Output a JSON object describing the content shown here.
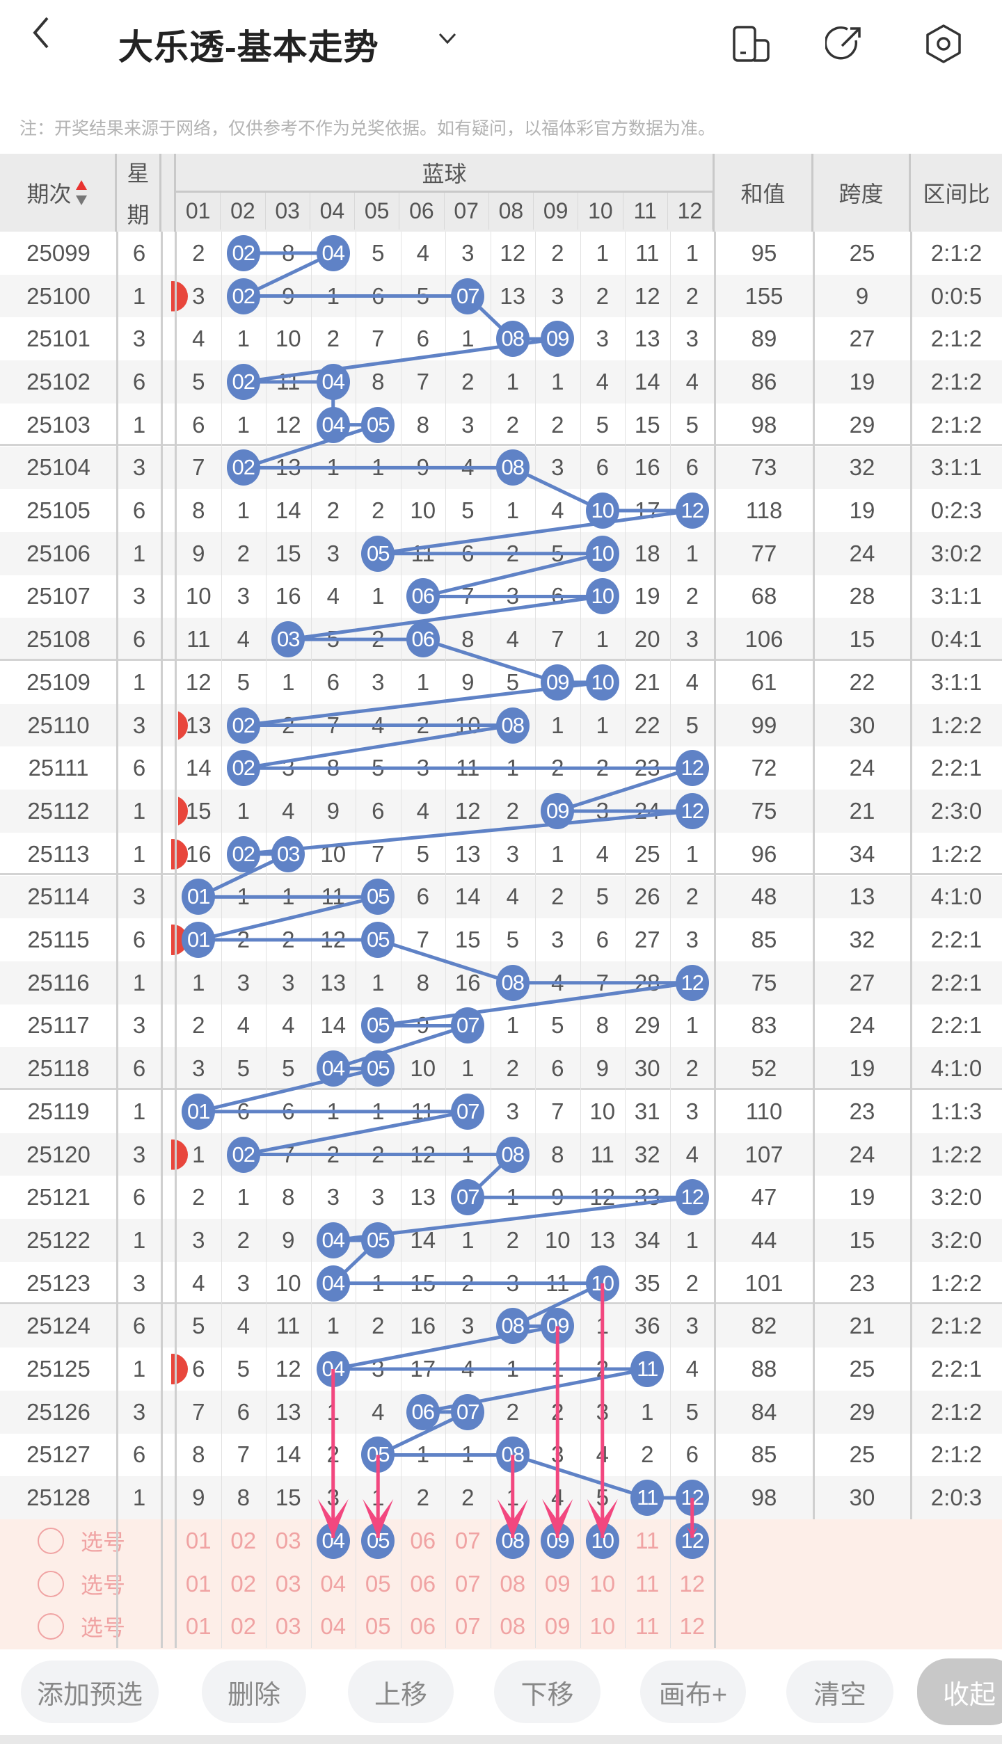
{
  "header": {
    "title": "大乐透-基本走势",
    "icons": [
      "back-icon",
      "chevron-down-icon",
      "screen-icon",
      "share-icon",
      "settings-icon"
    ],
    "note": "注：开奖结果来源于网络，仅供参考不作为兑奖依据。如有疑问，以福体彩官方数据为准。"
  },
  "table": {
    "col_issue": "期次",
    "col_weekday_1": "星",
    "col_weekday_2": "期",
    "group_blue": "蓝球",
    "balls": [
      "01",
      "02",
      "03",
      "04",
      "05",
      "06",
      "07",
      "08",
      "09",
      "10",
      "11",
      "12"
    ],
    "col_sum": "和值",
    "col_span": "跨度",
    "col_ratio": "区间比",
    "rows": [
      {
        "issue": "25099",
        "weekday": "6",
        "cells": [
          "2",
          "02",
          "8",
          "04",
          "5",
          "4",
          "3",
          "12",
          "2",
          "1",
          "11",
          "1"
        ],
        "hits": [
          "02",
          "04"
        ],
        "sum": "95",
        "span": "25",
        "ratio": "2:1:2"
      },
      {
        "issue": "25100",
        "weekday": "1",
        "cells": [
          "3",
          "02",
          "9",
          "1",
          "6",
          "5",
          "07",
          "13",
          "3",
          "2",
          "12",
          "2"
        ],
        "hits": [
          "02",
          "07"
        ],
        "sum": "155",
        "span": "9",
        "ratio": "0:0:5"
      },
      {
        "issue": "25101",
        "weekday": "3",
        "cells": [
          "4",
          "1",
          "10",
          "2",
          "7",
          "6",
          "1",
          "08",
          "09",
          "3",
          "13",
          "3"
        ],
        "hits": [
          "08",
          "09"
        ],
        "sum": "89",
        "span": "27",
        "ratio": "2:1:2"
      },
      {
        "issue": "25102",
        "weekday": "6",
        "cells": [
          "5",
          "02",
          "11",
          "04",
          "8",
          "7",
          "2",
          "1",
          "1",
          "4",
          "14",
          "4"
        ],
        "hits": [
          "02",
          "04"
        ],
        "sum": "86",
        "span": "19",
        "ratio": "2:1:2"
      },
      {
        "issue": "25103",
        "weekday": "1",
        "cells": [
          "6",
          "1",
          "12",
          "04",
          "05",
          "8",
          "3",
          "2",
          "2",
          "5",
          "15",
          "5"
        ],
        "hits": [
          "04",
          "05"
        ],
        "sum": "98",
        "span": "29",
        "ratio": "2:1:2"
      },
      {
        "issue": "25104",
        "weekday": "3",
        "cells": [
          "7",
          "02",
          "13",
          "1",
          "1",
          "9",
          "4",
          "08",
          "3",
          "6",
          "16",
          "6"
        ],
        "hits": [
          "02",
          "08"
        ],
        "sum": "73",
        "span": "32",
        "ratio": "3:1:1"
      },
      {
        "issue": "25105",
        "weekday": "6",
        "cells": [
          "8",
          "1",
          "14",
          "2",
          "2",
          "10",
          "5",
          "1",
          "4",
          "10",
          "17",
          "12"
        ],
        "hits": [
          "10",
          "12"
        ],
        "sum": "118",
        "span": "19",
        "ratio": "0:2:3"
      },
      {
        "issue": "25106",
        "weekday": "1",
        "cells": [
          "9",
          "2",
          "15",
          "3",
          "05",
          "11",
          "6",
          "2",
          "5",
          "10",
          "18",
          "1"
        ],
        "hits": [
          "05",
          "10"
        ],
        "sum": "77",
        "span": "24",
        "ratio": "3:0:2"
      },
      {
        "issue": "25107",
        "weekday": "3",
        "cells": [
          "10",
          "3",
          "16",
          "4",
          "1",
          "06",
          "7",
          "3",
          "6",
          "10",
          "19",
          "2"
        ],
        "hits": [
          "06",
          "10"
        ],
        "sum": "68",
        "span": "28",
        "ratio": "3:1:1"
      },
      {
        "issue": "25108",
        "weekday": "6",
        "cells": [
          "11",
          "4",
          "03",
          "5",
          "2",
          "06",
          "8",
          "4",
          "7",
          "1",
          "20",
          "3"
        ],
        "hits": [
          "03",
          "06"
        ],
        "sum": "106",
        "span": "15",
        "ratio": "0:4:1"
      },
      {
        "issue": "25109",
        "weekday": "1",
        "cells": [
          "12",
          "5",
          "1",
          "6",
          "3",
          "1",
          "9",
          "5",
          "09",
          "10",
          "21",
          "4"
        ],
        "hits": [
          "09",
          "10"
        ],
        "sum": "61",
        "span": "22",
        "ratio": "3:1:1"
      },
      {
        "issue": "25110",
        "weekday": "3",
        "cells": [
          "13",
          "02",
          "2",
          "7",
          "4",
          "2",
          "10",
          "08",
          "1",
          "1",
          "22",
          "5"
        ],
        "hits": [
          "02",
          "08"
        ],
        "sum": "99",
        "span": "30",
        "ratio": "1:2:2"
      },
      {
        "issue": "25111",
        "weekday": "6",
        "cells": [
          "14",
          "02",
          "3",
          "8",
          "5",
          "3",
          "11",
          "1",
          "2",
          "2",
          "23",
          "12"
        ],
        "hits": [
          "02",
          "12"
        ],
        "sum": "72",
        "span": "24",
        "ratio": "2:2:1"
      },
      {
        "issue": "25112",
        "weekday": "1",
        "cells": [
          "15",
          "1",
          "4",
          "9",
          "6",
          "4",
          "12",
          "2",
          "09",
          "3",
          "24",
          "12"
        ],
        "hits": [
          "09",
          "12"
        ],
        "sum": "75",
        "span": "21",
        "ratio": "2:3:0"
      },
      {
        "issue": "25113",
        "weekday": "1",
        "cells": [
          "16",
          "02",
          "03",
          "10",
          "7",
          "5",
          "13",
          "3",
          "1",
          "4",
          "25",
          "1"
        ],
        "hits": [
          "02",
          "03"
        ],
        "sum": "96",
        "span": "34",
        "ratio": "1:2:2"
      },
      {
        "issue": "25114",
        "weekday": "3",
        "cells": [
          "01",
          "1",
          "1",
          "11",
          "05",
          "6",
          "14",
          "4",
          "2",
          "5",
          "26",
          "2"
        ],
        "hits": [
          "01",
          "05"
        ],
        "sum": "48",
        "span": "13",
        "ratio": "4:1:0"
      },
      {
        "issue": "25115",
        "weekday": "6",
        "cells": [
          "01",
          "2",
          "2",
          "12",
          "05",
          "7",
          "15",
          "5",
          "3",
          "6",
          "27",
          "3"
        ],
        "hits": [
          "01",
          "05"
        ],
        "sum": "85",
        "span": "32",
        "ratio": "2:2:1"
      },
      {
        "issue": "25116",
        "weekday": "1",
        "cells": [
          "1",
          "3",
          "3",
          "13",
          "1",
          "8",
          "16",
          "08",
          "4",
          "7",
          "28",
          "12"
        ],
        "hits": [
          "08",
          "12"
        ],
        "sum": "75",
        "span": "27",
        "ratio": "2:2:1"
      },
      {
        "issue": "25117",
        "weekday": "3",
        "cells": [
          "2",
          "4",
          "4",
          "14",
          "05",
          "9",
          "07",
          "1",
          "5",
          "8",
          "29",
          "1"
        ],
        "hits": [
          "05",
          "07"
        ],
        "sum": "83",
        "span": "24",
        "ratio": "2:2:1"
      },
      {
        "issue": "25118",
        "weekday": "6",
        "cells": [
          "3",
          "5",
          "5",
          "04",
          "05",
          "10",
          "1",
          "2",
          "6",
          "9",
          "30",
          "2"
        ],
        "hits": [
          "04",
          "05"
        ],
        "sum": "52",
        "span": "19",
        "ratio": "4:1:0"
      },
      {
        "issue": "25119",
        "weekday": "1",
        "cells": [
          "01",
          "6",
          "6",
          "1",
          "1",
          "11",
          "07",
          "3",
          "7",
          "10",
          "31",
          "3"
        ],
        "hits": [
          "01",
          "07"
        ],
        "sum": "110",
        "span": "23",
        "ratio": "1:1:3"
      },
      {
        "issue": "25120",
        "weekday": "3",
        "cells": [
          "1",
          "02",
          "7",
          "2",
          "2",
          "12",
          "1",
          "08",
          "8",
          "11",
          "32",
          "4"
        ],
        "hits": [
          "02",
          "08"
        ],
        "sum": "107",
        "span": "24",
        "ratio": "1:2:2"
      },
      {
        "issue": "25121",
        "weekday": "6",
        "cells": [
          "2",
          "1",
          "8",
          "3",
          "3",
          "13",
          "07",
          "1",
          "9",
          "12",
          "33",
          "12"
        ],
        "hits": [
          "07",
          "12"
        ],
        "sum": "47",
        "span": "19",
        "ratio": "3:2:0"
      },
      {
        "issue": "25122",
        "weekday": "1",
        "cells": [
          "3",
          "2",
          "9",
          "04",
          "05",
          "14",
          "1",
          "2",
          "10",
          "13",
          "34",
          "1"
        ],
        "hits": [
          "04",
          "05"
        ],
        "sum": "44",
        "span": "15",
        "ratio": "3:2:0"
      },
      {
        "issue": "25123",
        "weekday": "3",
        "cells": [
          "4",
          "3",
          "10",
          "04",
          "1",
          "15",
          "2",
          "3",
          "11",
          "10",
          "35",
          "2"
        ],
        "hits": [
          "04",
          "10"
        ],
        "sum": "101",
        "span": "23",
        "ratio": "1:2:2"
      },
      {
        "issue": "25124",
        "weekday": "6",
        "cells": [
          "5",
          "4",
          "11",
          "1",
          "2",
          "16",
          "3",
          "08",
          "09",
          "1",
          "36",
          "3"
        ],
        "hits": [
          "08",
          "09"
        ],
        "sum": "82",
        "span": "21",
        "ratio": "2:1:2"
      },
      {
        "issue": "25125",
        "weekday": "1",
        "cells": [
          "6",
          "5",
          "12",
          "04",
          "3",
          "17",
          "4",
          "1",
          "1",
          "2",
          "11",
          "4"
        ],
        "hits": [
          "04",
          "11"
        ],
        "sum": "88",
        "span": "25",
        "ratio": "2:2:1"
      },
      {
        "issue": "25126",
        "weekday": "3",
        "cells": [
          "7",
          "6",
          "13",
          "1",
          "4",
          "06",
          "07",
          "2",
          "2",
          "3",
          "1",
          "5"
        ],
        "hits": [
          "06",
          "07"
        ],
        "sum": "84",
        "span": "29",
        "ratio": "2:1:2"
      },
      {
        "issue": "25127",
        "weekday": "6",
        "cells": [
          "8",
          "7",
          "14",
          "2",
          "05",
          "1",
          "1",
          "08",
          "3",
          "4",
          "2",
          "6"
        ],
        "hits": [
          "05",
          "08"
        ],
        "sum": "85",
        "span": "25",
        "ratio": "2:1:2"
      },
      {
        "issue": "25128",
        "weekday": "1",
        "cells": [
          "9",
          "8",
          "15",
          "3",
          "1",
          "2",
          "2",
          "1",
          "4",
          "5",
          "11",
          "12"
        ],
        "hits": [
          "11",
          "12"
        ],
        "sum": "98",
        "span": "30",
        "ratio": "2:0:3"
      }
    ]
  },
  "picker": {
    "rows": [
      {
        "label": "选号",
        "selected": [
          "04",
          "05",
          "08",
          "09",
          "10",
          "12"
        ]
      },
      {
        "label": "选号",
        "selected": []
      },
      {
        "label": "选号",
        "selected": []
      }
    ]
  },
  "colors": {
    "ball": "#5f82c6",
    "arrow": "#f2477f",
    "picker_bg": "#fdeee8",
    "picker_text": "#f0a3a3"
  },
  "toolbar": {
    "add": "添加预选",
    "delete": "删除",
    "up": "上移",
    "down": "下移",
    "canvas": "画布+",
    "clear": "清空",
    "collapse": "收起"
  }
}
